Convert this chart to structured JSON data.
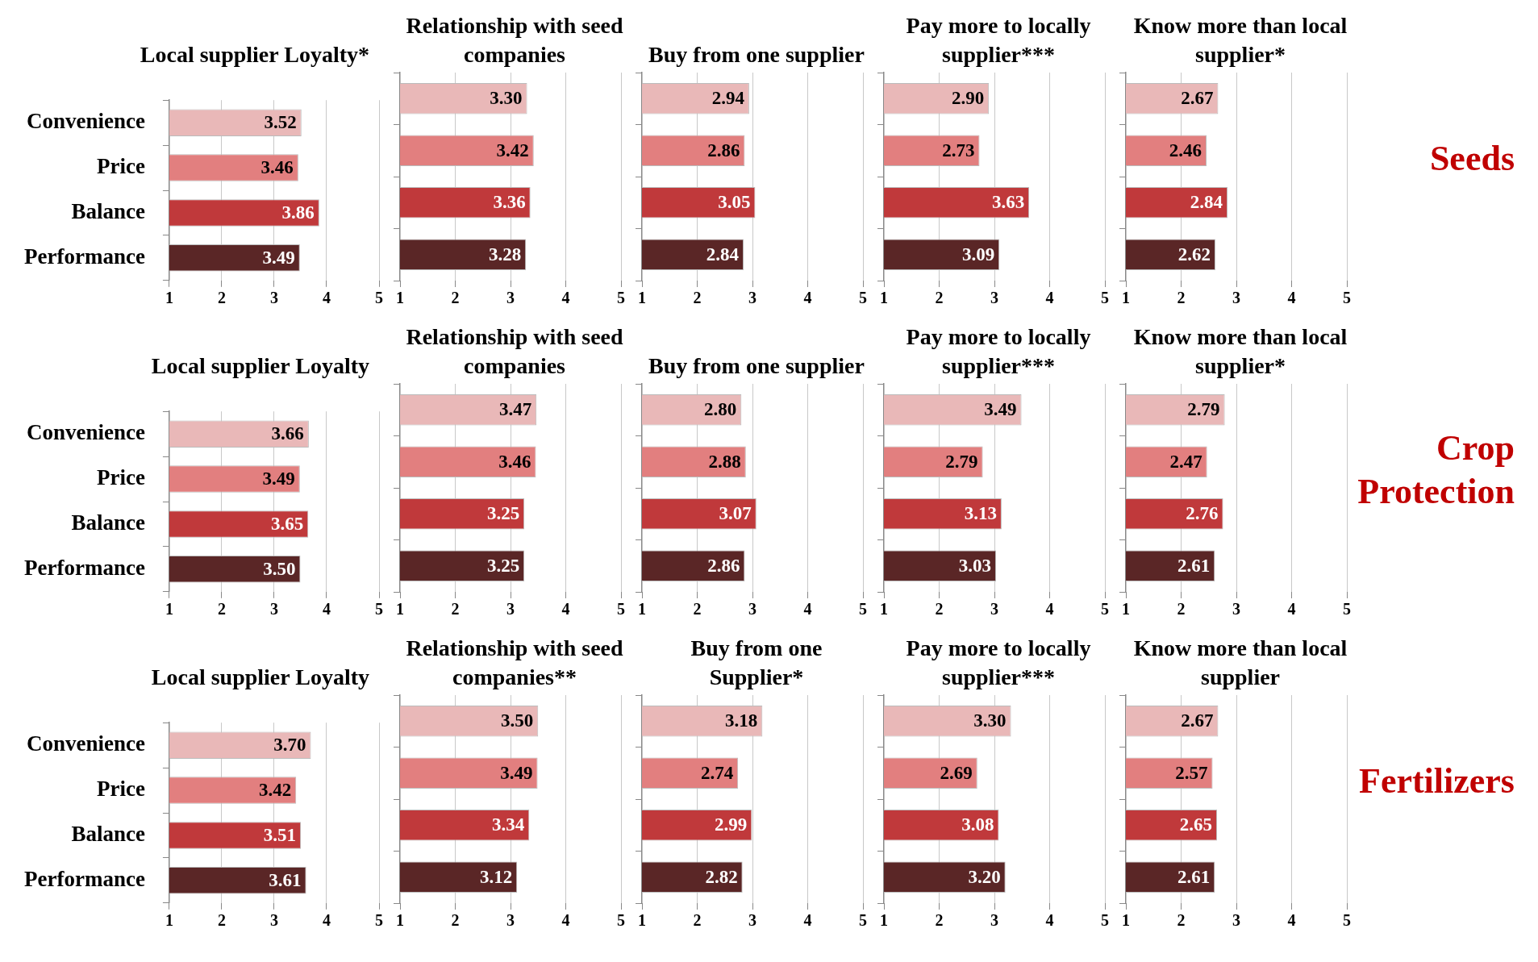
{
  "chart_data": [
    {
      "type": "bar",
      "orientation": "horizontal",
      "title": "Local supplier Loyalty*",
      "categories": [
        "Convenience",
        "Price",
        "Balance",
        "Performance"
      ],
      "values": [
        3.52,
        3.46,
        3.86,
        3.49
      ],
      "value_labels": [
        "3.52",
        "3.46",
        "3.86",
        "3.49"
      ],
      "colors": [
        "#e9b8b8",
        "#e27f7f",
        "#c0393b",
        "#5a2626"
      ],
      "xlim": [
        1,
        5
      ],
      "xticks": [
        1,
        2,
        3,
        4,
        5
      ],
      "grid": "x",
      "legend": false
    },
    {
      "type": "bar",
      "orientation": "horizontal",
      "title": "Relationship with seed companies",
      "categories": [
        null,
        null,
        null,
        null
      ],
      "values": [
        3.3,
        3.42,
        3.36,
        3.28
      ],
      "value_labels": [
        "3.30",
        "3.42",
        "3.36",
        "3.28"
      ],
      "colors": [
        "#e9b8b8",
        "#e27f7f",
        "#c0393b",
        "#5a2626"
      ],
      "xlim": [
        1,
        5
      ],
      "xticks": [
        1,
        2,
        3,
        4,
        5
      ],
      "grid": "x",
      "legend": false,
      "tick_labels": "x"
    },
    {
      "type": "bar",
      "orientation": "horizontal",
      "title": "Buy from one supplier",
      "categories": [
        null,
        null,
        null,
        null
      ],
      "values": [
        2.94,
        2.86,
        3.05,
        2.84
      ],
      "value_labels": [
        "2.94",
        "2.86",
        "3.05",
        "2.84"
      ],
      "colors": [
        "#e9b8b8",
        "#e27f7f",
        "#c0393b",
        "#5a2626"
      ],
      "xlim": [
        1,
        5
      ],
      "xticks": [
        1,
        2,
        3,
        4,
        5
      ],
      "grid": "x",
      "legend": false,
      "tick_labels": "x"
    },
    {
      "type": "bar",
      "orientation": "horizontal",
      "title": "Pay more to locally supplier***",
      "categories": [
        null,
        null,
        null,
        null
      ],
      "values": [
        2.9,
        2.73,
        3.63,
        3.09
      ],
      "value_labels": [
        "2.90",
        "2.73",
        "3.63",
        "3.09"
      ],
      "colors": [
        "#e9b8b8",
        "#e27f7f",
        "#c0393b",
        "#5a2626"
      ],
      "xlim": [
        1,
        5
      ],
      "xticks": [
        1,
        2,
        3,
        4,
        5
      ],
      "grid": "x",
      "legend": false,
      "tick_labels": "x"
    },
    {
      "type": "bar",
      "orientation": "horizontal",
      "title": "Know more than local supplier*",
      "categories": [
        null,
        null,
        null,
        null
      ],
      "values": [
        2.67,
        2.46,
        2.84,
        2.62
      ],
      "value_labels": [
        "2.67",
        "2.46",
        "2.84",
        "2.62"
      ],
      "colors": [
        "#e9b8b8",
        "#e27f7f",
        "#c0393b",
        "#5a2626"
      ],
      "xlim": [
        1,
        5
      ],
      "xticks": [
        1,
        2,
        3,
        4,
        5
      ],
      "grid": "x",
      "legend": false,
      "tick_labels": "x",
      "annotations": [
        "Seeds"
      ]
    },
    {
      "type": "bar",
      "orientation": "horizontal",
      "title": "Local supplier Loyalty",
      "categories": [
        "Convenience",
        "Price",
        "Balance",
        "Performance"
      ],
      "values": [
        3.66,
        3.49,
        3.65,
        3.5
      ],
      "value_labels": [
        "3.66",
        "3.49",
        "3.65",
        "3.50"
      ],
      "colors": [
        "#e9b8b8",
        "#e27f7f",
        "#c0393b",
        "#5a2626"
      ],
      "xlim": [
        1,
        5
      ],
      "xticks": [
        1,
        2,
        3,
        4,
        5
      ],
      "grid": "x",
      "legend": false
    },
    {
      "type": "bar",
      "orientation": "horizontal",
      "title": "Relationship with seed companies",
      "categories": [
        null,
        null,
        null,
        null
      ],
      "values": [
        3.47,
        3.46,
        3.25,
        3.25
      ],
      "value_labels": [
        "3.47",
        "3.46",
        "3.25",
        "3.25"
      ],
      "colors": [
        "#e9b8b8",
        "#e27f7f",
        "#c0393b",
        "#5a2626"
      ],
      "xlim": [
        1,
        5
      ],
      "xticks": [
        1,
        2,
        3,
        4,
        5
      ],
      "grid": "x",
      "legend": false,
      "tick_labels": "x"
    },
    {
      "type": "bar",
      "orientation": "horizontal",
      "title": "Buy from one supplier",
      "categories": [
        null,
        null,
        null,
        null
      ],
      "values": [
        2.8,
        2.88,
        3.07,
        2.86
      ],
      "value_labels": [
        "2.80",
        "2.88",
        "3.07",
        "2.86"
      ],
      "colors": [
        "#e9b8b8",
        "#e27f7f",
        "#c0393b",
        "#5a2626"
      ],
      "xlim": [
        1,
        5
      ],
      "xticks": [
        1,
        2,
        3,
        4,
        5
      ],
      "grid": "x",
      "legend": false,
      "tick_labels": "x"
    },
    {
      "type": "bar",
      "orientation": "horizontal",
      "title": "Pay more to locally supplier***",
      "categories": [
        null,
        null,
        null,
        null
      ],
      "values": [
        3.49,
        2.79,
        3.13,
        3.03
      ],
      "value_labels": [
        "3.49",
        "2.79",
        "3.13",
        "3.03"
      ],
      "colors": [
        "#e9b8b8",
        "#e27f7f",
        "#c0393b",
        "#5a2626"
      ],
      "xlim": [
        1,
        5
      ],
      "xticks": [
        1,
        2,
        3,
        4,
        5
      ],
      "grid": "x",
      "legend": false,
      "tick_labels": "x"
    },
    {
      "type": "bar",
      "orientation": "horizontal",
      "title": "Know more than local supplier*",
      "categories": [
        null,
        null,
        null,
        null
      ],
      "values": [
        2.79,
        2.47,
        2.76,
        2.61
      ],
      "value_labels": [
        "2.79",
        "2.47",
        "2.76",
        "2.61"
      ],
      "colors": [
        "#e9b8b8",
        "#e27f7f",
        "#c0393b",
        "#5a2626"
      ],
      "xlim": [
        1,
        5
      ],
      "xticks": [
        1,
        2,
        3,
        4,
        5
      ],
      "grid": "x",
      "legend": false,
      "tick_labels": "x",
      "annotations": [
        "Crop Protection"
      ]
    },
    {
      "type": "bar",
      "orientation": "horizontal",
      "title": "Local supplier Loyalty",
      "categories": [
        "Convenience",
        "Price",
        "Balance",
        "Performance"
      ],
      "values": [
        3.7,
        3.42,
        3.51,
        3.61
      ],
      "value_labels": [
        "3.70",
        "3.42",
        "3.51",
        "3.61"
      ],
      "colors": [
        "#e9b8b8",
        "#e27f7f",
        "#c0393b",
        "#5a2626"
      ],
      "xlim": [
        1,
        5
      ],
      "xticks": [
        1,
        2,
        3,
        4,
        5
      ],
      "grid": "x",
      "legend": false
    },
    {
      "type": "bar",
      "orientation": "horizontal",
      "title": "Relationship with seed companies**",
      "categories": [
        null,
        null,
        null,
        null
      ],
      "values": [
        3.5,
        3.49,
        3.34,
        3.12
      ],
      "value_labels": [
        "3.50",
        "3.49",
        "3.34",
        "3.12"
      ],
      "colors": [
        "#e9b8b8",
        "#e27f7f",
        "#c0393b",
        "#5a2626"
      ],
      "xlim": [
        1,
        5
      ],
      "xticks": [
        1,
        2,
        3,
        4,
        5
      ],
      "grid": "x",
      "legend": false,
      "tick_labels": "x"
    },
    {
      "type": "bar",
      "orientation": "horizontal",
      "title": "Buy from one Supplier*",
      "categories": [
        null,
        null,
        null,
        null
      ],
      "values": [
        3.18,
        2.74,
        2.99,
        2.82
      ],
      "value_labels": [
        "3.18",
        "2.74",
        "2.99",
        "2.82"
      ],
      "colors": [
        "#e9b8b8",
        "#e27f7f",
        "#c0393b",
        "#5a2626"
      ],
      "xlim": [
        1,
        5
      ],
      "xticks": [
        1,
        2,
        3,
        4,
        5
      ],
      "grid": "x",
      "legend": false,
      "tick_labels": "x"
    },
    {
      "type": "bar",
      "orientation": "horizontal",
      "title": "Pay more to locally supplier***",
      "categories": [
        null,
        null,
        null,
        null
      ],
      "values": [
        3.3,
        2.69,
        3.08,
        3.2
      ],
      "value_labels": [
        "3.30",
        "2.69",
        "3.08",
        "3.20"
      ],
      "colors": [
        "#e9b8b8",
        "#e27f7f",
        "#c0393b",
        "#5a2626"
      ],
      "xlim": [
        1,
        5
      ],
      "xticks": [
        1,
        2,
        3,
        4,
        5
      ],
      "grid": "x",
      "legend": false,
      "tick_labels": "x"
    },
    {
      "type": "bar",
      "orientation": "horizontal",
      "title": "Know more than local supplier",
      "categories": [
        null,
        null,
        null,
        null
      ],
      "values": [
        2.67,
        2.57,
        2.65,
        2.61
      ],
      "value_labels": [
        "2.67",
        "2.57",
        "2.65",
        "2.61"
      ],
      "colors": [
        "#e9b8b8",
        "#e27f7f",
        "#c0393b",
        "#5a2626"
      ],
      "xlim": [
        1,
        5
      ],
      "xticks": [
        1,
        2,
        3,
        4,
        5
      ],
      "grid": "x",
      "legend": false,
      "tick_labels": "x",
      "annotations": [
        "Fertilizers"
      ]
    }
  ]
}
